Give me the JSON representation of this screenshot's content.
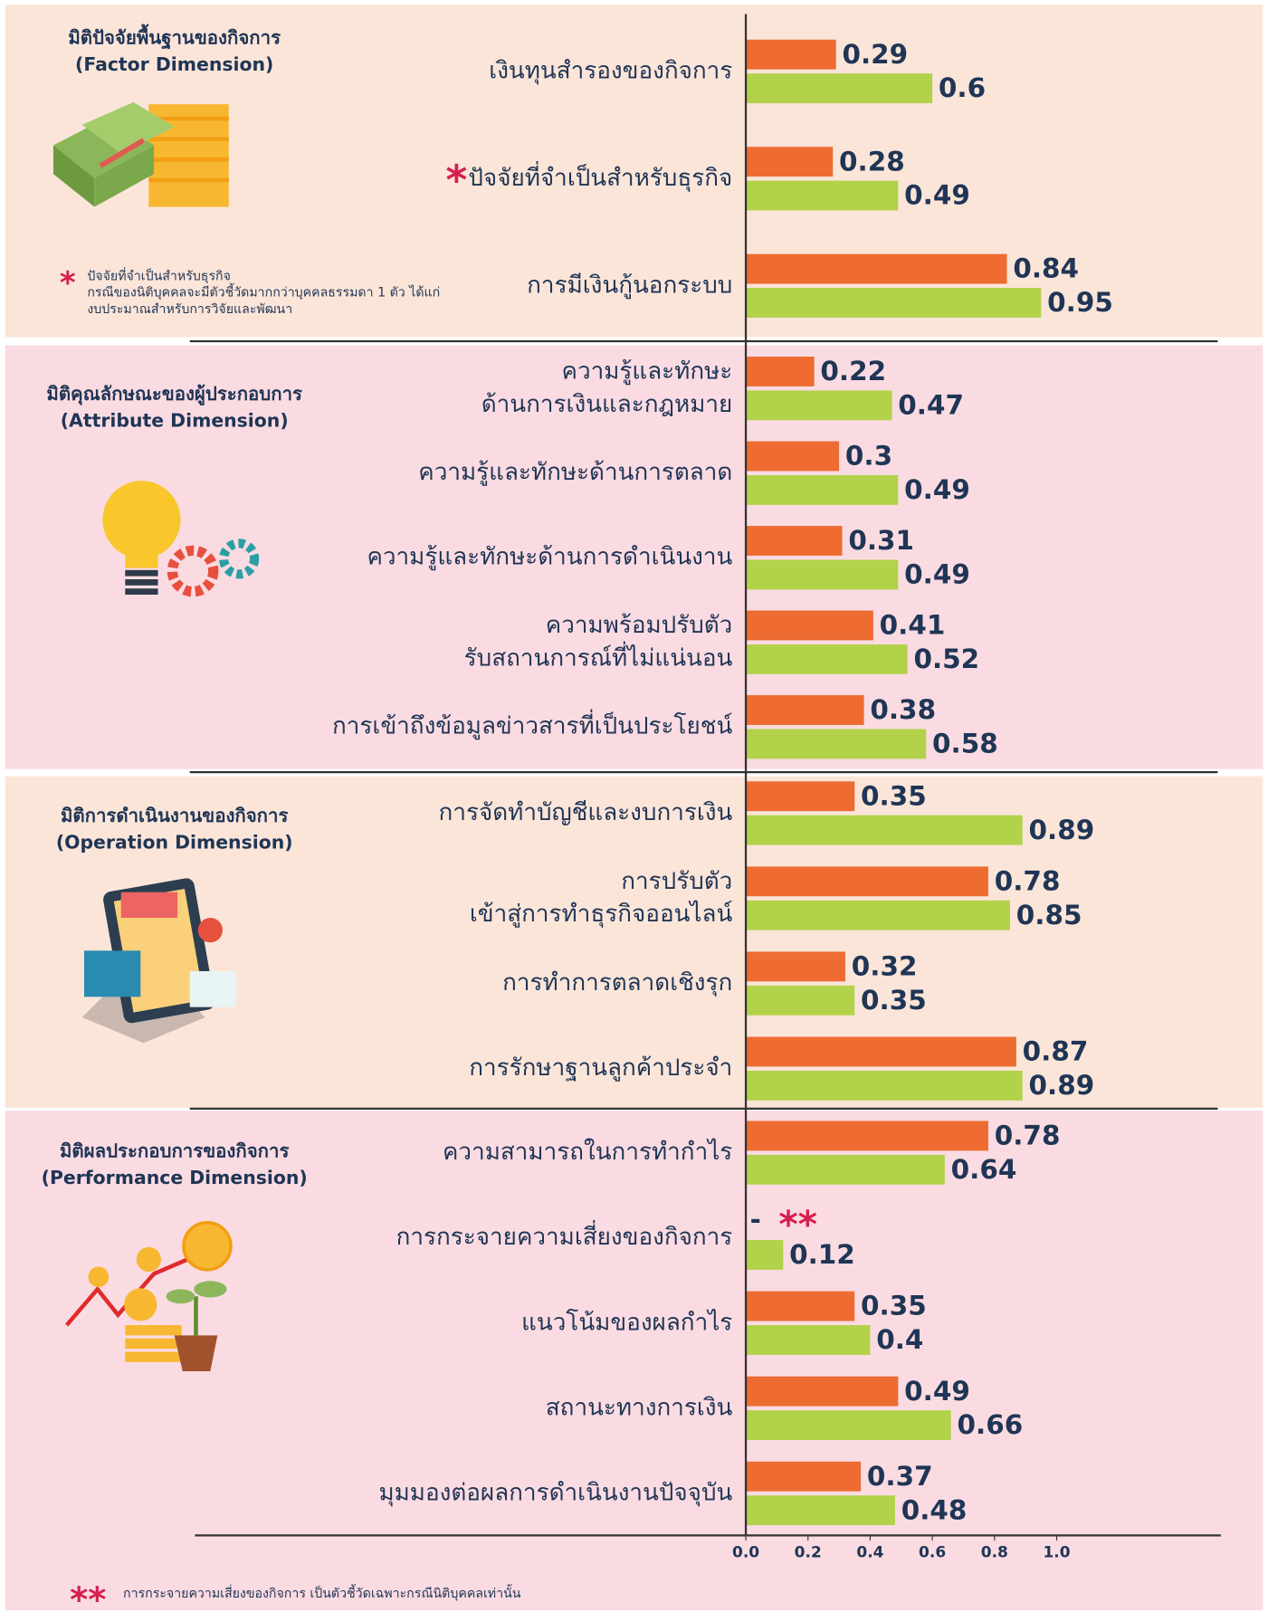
{
  "chart_data": {
    "type": "bar",
    "orientation": "horizontal",
    "xlim": [
      0,
      1.0
    ],
    "xticks": [
      {
        "value": 0,
        "label": "0.0"
      },
      0.2,
      0.4,
      0.6,
      0.8,
      {
        "value": 1,
        "label": "1.0"
      }
    ],
    "sections": [
      {
        "title": "มิติปัจจัยพื้นฐานของกิจการ",
        "subtitle": "(Factor Dimension)",
        "categories": [
          [
            "เงินทุนสำรองของกิจการ"
          ],
          [
            "ปัจจัยที่จำเป็นสำหรับธุรกิจ"
          ],
          [
            "การมีเงินกู้นอกระบบ"
          ]
        ],
        "series": [
          {
            "color": "#ee6b31",
            "values": [
              0.29,
              0.28,
              0.84
            ]
          },
          {
            "color": "#b2d24a",
            "values": [
              0.6,
              0.49,
              0.95
            ]
          }
        ]
      },
      {
        "title": "มิติคุณลักษณะของผู้ประกอบการ",
        "subtitle": "(Attribute Dimension)",
        "categories": [
          [
            "ความรู้และทักษะ",
            "ด้านการเงินและกฎหมาย"
          ],
          [
            "ความรู้และทักษะด้านการตลาด"
          ],
          [
            "ความรู้และทักษะด้านการดำเนินงาน"
          ],
          [
            "ความพร้อมปรับตัว",
            "รับสถานการณ์ที่ไม่แน่นอน"
          ],
          [
            "การเข้าถึงข้อมูลข่าวสารที่เป็นประโยชน์"
          ]
        ],
        "series": [
          {
            "color": "#ee6b31",
            "values": [
              0.22,
              0.3,
              0.31,
              0.41,
              0.38
            ]
          },
          {
            "color": "#b2d24a",
            "values": [
              0.47,
              0.49,
              0.49,
              0.52,
              0.58
            ]
          }
        ]
      },
      {
        "title": "มิติการดำเนินงานของกิจการ",
        "subtitle": "(Operation Dimension)",
        "categories": [
          [
            "การจัดทำบัญชีและงบการเงิน"
          ],
          [
            "การปรับตัว",
            "เข้าสู่การทำธุรกิจออนไลน์"
          ],
          [
            "การทำการตลาดเชิงรุก"
          ],
          [
            "การรักษาฐานลูกค้าประจำ"
          ]
        ],
        "series": [
          {
            "color": "#ee6b31",
            "values": [
              0.35,
              0.78,
              0.32,
              0.87
            ]
          },
          {
            "color": "#b2d24a",
            "values": [
              0.89,
              0.85,
              0.35,
              0.89
            ]
          }
        ]
      },
      {
        "title": "มิติผลประกอบการของกิจการ",
        "subtitle": "(Performance Dimension)",
        "categories": [
          [
            "ความสามารถในการทำกำไร"
          ],
          [
            "การกระจายความเสี่ยงของกิจการ"
          ],
          [
            "แนวโน้มของผลกำไร"
          ],
          [
            "สถานะทางการเงิน"
          ],
          [
            "มุมมองต่อผลการดำเนินงานปัจจุบัน"
          ]
        ],
        "series": [
          {
            "color": "#ee6b31",
            "values": [
              0.78,
              null,
              0.35,
              0.49,
              0.37
            ],
            "value_labels": [
              "0.78",
              "-",
              "0.35",
              "0.49",
              "0.37"
            ]
          },
          {
            "color": "#b2d24a",
            "values": [
              0.64,
              0.12,
              0.4,
              0.66,
              0.48
            ]
          }
        ]
      }
    ],
    "footnotes": [
      {
        "mark": "*",
        "lines": [
          "ปัจจัยที่จำเป็นสำหรับธุรกิจ",
          "กรณีของนิติบุคคลจะมีตัวชี้วัดมากกว่าบุคคลธรรมดา 1 ตัว ได้แก่",
          "งบประมาณสำหรับการวิจัยและพัฒนา"
        ]
      },
      {
        "mark": "**",
        "lines": [
          "การกระจายความเสี่ยงของกิจการ เป็นตัวชี้วัดเฉพาะกรณีนิติบุคคลเท่านั้น"
        ]
      }
    ]
  }
}
